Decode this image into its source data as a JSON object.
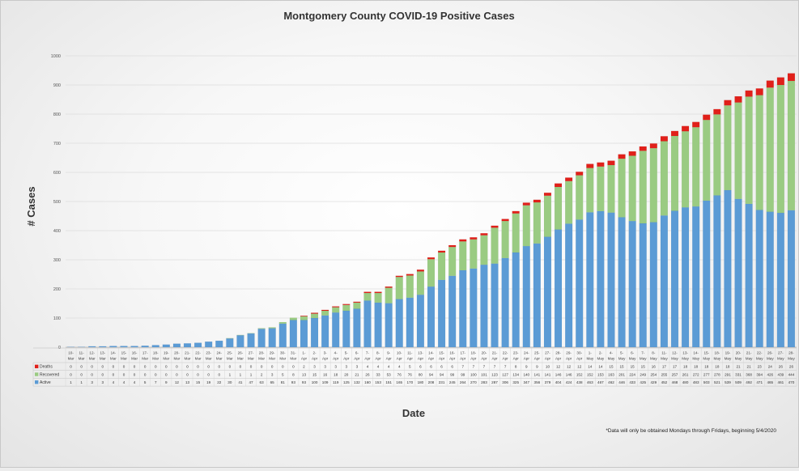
{
  "chart_data": {
    "type": "bar",
    "stacked": true,
    "title": "Montgomery County COVID-19 Positive Cases",
    "xlabel": "Date",
    "ylabel": "# Cases",
    "ylim": [
      0,
      1000
    ],
    "yticks": [
      0,
      100,
      200,
      300,
      400,
      500,
      600,
      700,
      800,
      900,
      1000
    ],
    "grid": true,
    "footnote": "*Data will only be obtained Mondays through Fridays, beginning 5/4/2020",
    "categories": [
      [
        "10-",
        "Mar"
      ],
      [
        "11-",
        "Mar"
      ],
      [
        "12-",
        "Mar"
      ],
      [
        "13-",
        "Mar"
      ],
      [
        "14-",
        "Mar"
      ],
      [
        "15-",
        "Mar"
      ],
      [
        "16-",
        "Mar"
      ],
      [
        "17-",
        "Mar"
      ],
      [
        "18-",
        "Mar"
      ],
      [
        "19-",
        "Mar"
      ],
      [
        "20-",
        "Mar"
      ],
      [
        "21-",
        "Mar"
      ],
      [
        "22-",
        "Mar"
      ],
      [
        "23-",
        "Mar"
      ],
      [
        "24-",
        "Mar"
      ],
      [
        "25-",
        "Mar"
      ],
      [
        "26-",
        "Mar"
      ],
      [
        "27-",
        "Mar"
      ],
      [
        "28-",
        "Mar"
      ],
      [
        "29-",
        "Mar"
      ],
      [
        "30-",
        "Mar"
      ],
      [
        "31-",
        "Mar"
      ],
      [
        "1-",
        "Apr"
      ],
      [
        "2-",
        "Apr"
      ],
      [
        "3-",
        "Apr"
      ],
      [
        "4-",
        "Apr"
      ],
      [
        "5-",
        "Apr"
      ],
      [
        "6-",
        "Apr"
      ],
      [
        "7-",
        "Apr"
      ],
      [
        "8-",
        "Apr"
      ],
      [
        "9-",
        "Apr"
      ],
      [
        "10-",
        "Apr"
      ],
      [
        "11-",
        "Apr"
      ],
      [
        "13-",
        "Apr"
      ],
      [
        "14-",
        "Apr"
      ],
      [
        "15-",
        "Apr"
      ],
      [
        "16-",
        "Apr"
      ],
      [
        "17-",
        "Apr"
      ],
      [
        "18-",
        "Apr"
      ],
      [
        "20-",
        "Apr"
      ],
      [
        "21-",
        "Apr"
      ],
      [
        "22-",
        "Apr"
      ],
      [
        "23-",
        "Apr"
      ],
      [
        "24-",
        "Apr"
      ],
      [
        "25-",
        "Apr"
      ],
      [
        "27-",
        "Apr"
      ],
      [
        "28-",
        "Apr"
      ],
      [
        "29-",
        "Apr"
      ],
      [
        "30-",
        "Apr"
      ],
      [
        "1-",
        "May"
      ],
      [
        "2-",
        "May"
      ],
      [
        "4-",
        "May"
      ],
      [
        "5-",
        "May"
      ],
      [
        "6-",
        "May"
      ],
      [
        "7-",
        "May"
      ],
      [
        "8-",
        "May"
      ],
      [
        "11-",
        "May"
      ],
      [
        "12-",
        "May"
      ],
      [
        "13-",
        "May"
      ],
      [
        "14-",
        "May"
      ],
      [
        "15-",
        "May"
      ],
      [
        "18-",
        "May"
      ],
      [
        "19-",
        "May"
      ],
      [
        "20-",
        "May"
      ],
      [
        "21-",
        "May"
      ],
      [
        "22-",
        "May"
      ],
      [
        "26-",
        "May"
      ],
      [
        "27-",
        "May"
      ],
      [
        "28-",
        "May"
      ]
    ],
    "series": [
      {
        "name": "Deaths",
        "color": "#e0201a",
        "values": [
          0,
          0,
          0,
          0,
          0,
          0,
          0,
          0,
          0,
          0,
          0,
          0,
          0,
          0,
          0,
          0,
          0,
          0,
          0,
          0,
          0,
          0,
          2,
          3,
          3,
          3,
          3,
          3,
          4,
          4,
          4,
          4,
          5,
          6,
          6,
          6,
          6,
          7,
          7,
          7,
          7,
          7,
          8,
          9,
          9,
          10,
          12,
          12,
          12,
          14,
          14,
          15,
          15,
          15,
          15,
          16,
          17,
          17,
          18,
          18,
          18,
          18,
          18,
          21,
          21,
          23,
          24,
          26,
          26
        ]
      },
      {
        "name": "Recovered",
        "color": "#9acb82",
        "values": [
          0,
          0,
          0,
          0,
          0,
          0,
          0,
          0,
          0,
          0,
          0,
          0,
          0,
          0,
          0,
          1,
          1,
          1,
          2,
          3,
          5,
          8,
          13,
          15,
          16,
          18,
          20,
          21,
          26,
          33,
          53,
          76,
          76,
          80,
          94,
          94,
          99,
          99,
          100,
          101,
          123,
          127,
          134,
          140,
          141,
          141,
          146,
          146,
          152,
          152,
          153,
          163,
          201,
          224,
          249,
          254,
          255,
          257,
          261,
          272,
          277,
          278,
          291,
          331,
          368,
          394,
          426,
          439,
          444
        ]
      },
      {
        "name": "Active",
        "color": "#5b9bd5",
        "values": [
          1,
          1,
          3,
          3,
          4,
          4,
          4,
          5,
          7,
          9,
          12,
          13,
          15,
          19,
          22,
          30,
          41,
          47,
          63,
          65,
          81,
          93,
          93,
          100,
          109,
          119,
          125,
          132,
          160,
          153,
          151,
          165,
          170,
          180,
          208,
          231,
          245,
          264,
          270,
          283,
          287,
          306,
          325,
          347,
          356,
          379,
          404,
          424,
          438,
          463,
          467,
          462,
          446,
          433,
          425,
          429,
          452,
          468,
          480,
          483,
          503,
          521,
          539,
          509,
          492,
          471,
          465,
          461,
          470
        ]
      }
    ]
  }
}
